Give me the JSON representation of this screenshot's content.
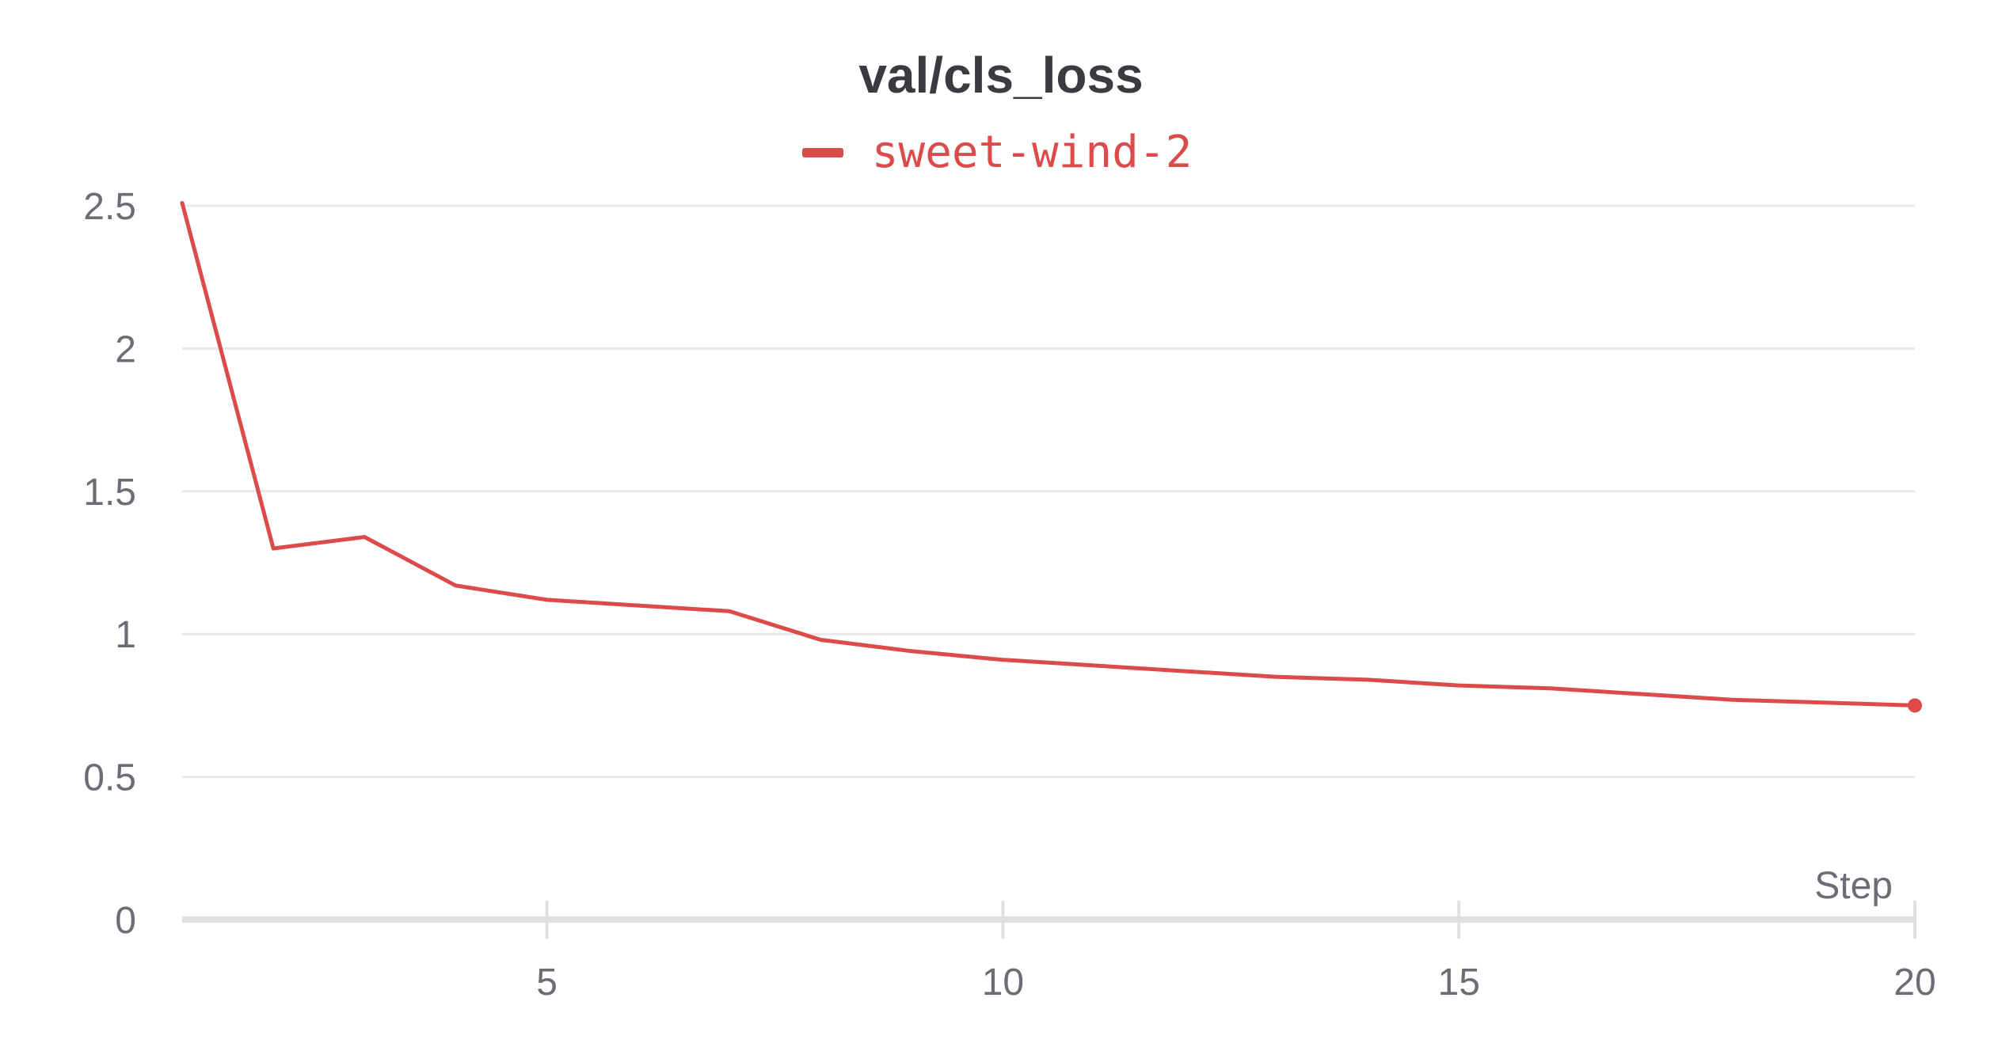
{
  "chart_data": {
    "type": "line",
    "title": "val/cls_loss",
    "xlabel": "Step",
    "ylabel": "",
    "xlim": [
      1,
      20
    ],
    "ylim": [
      0,
      2.5
    ],
    "x_ticks": [
      5,
      10,
      15,
      20
    ],
    "y_ticks": [
      0,
      0.5,
      1,
      1.5,
      2,
      2.5
    ],
    "y_tick_labels": [
      "0",
      "0.5",
      "1",
      "1.5",
      "2",
      "2.5"
    ],
    "grid": "horizontal",
    "legend_placement": "top-center",
    "series": [
      {
        "name": "sweet-wind-2",
        "color": "#dc4a4a",
        "x": [
          1,
          2,
          3,
          4,
          5,
          6,
          7,
          8,
          9,
          10,
          11,
          12,
          13,
          14,
          15,
          16,
          17,
          18,
          19,
          20
        ],
        "y": [
          2.51,
          1.3,
          1.34,
          1.17,
          1.12,
          1.1,
          1.08,
          0.98,
          0.94,
          0.91,
          0.89,
          0.87,
          0.85,
          0.84,
          0.82,
          0.81,
          0.79,
          0.77,
          0.76,
          0.75
        ]
      }
    ]
  },
  "colors": {
    "axis_text": "#6b6c75",
    "grid": "#e8e8ea",
    "axis_line": "#e0e0e3",
    "title": "#3a3b40"
  }
}
